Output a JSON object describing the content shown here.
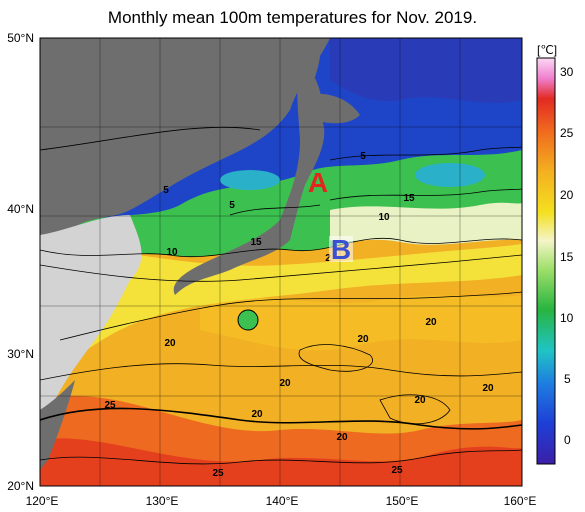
{
  "title": "Monthly mean 100m temperatures for Nov. 2019.",
  "axes": {
    "lat_labels": [
      "50°N",
      "40°N",
      "30°N",
      "20°N"
    ],
    "lon_labels": [
      "120°E",
      "130°E",
      "140°E",
      "150°E",
      "160°E"
    ]
  },
  "colorbar": {
    "unit": "[℃]",
    "ticks": [
      "30",
      "25",
      "20",
      "15",
      "10",
      "5",
      "0"
    ],
    "range": [
      -2,
      31
    ]
  },
  "contour_labels": [
    "5",
    "5",
    "5",
    "10",
    "15",
    "15",
    "10",
    "2",
    "20",
    "20",
    "20",
    "20",
    "20",
    "20",
    "20",
    "20",
    "25",
    "25",
    "25"
  ],
  "markers": {
    "a": {
      "text": "A",
      "color": "#e0271e"
    },
    "b": {
      "text": "B",
      "color": "#3b4fd1"
    }
  },
  "colors": {
    "land": "#6e6e6e",
    "land_light": "#d3d3d3",
    "cold": "#1e3fc7",
    "warm": "#f0a020",
    "hot": "#e8401e"
  }
}
